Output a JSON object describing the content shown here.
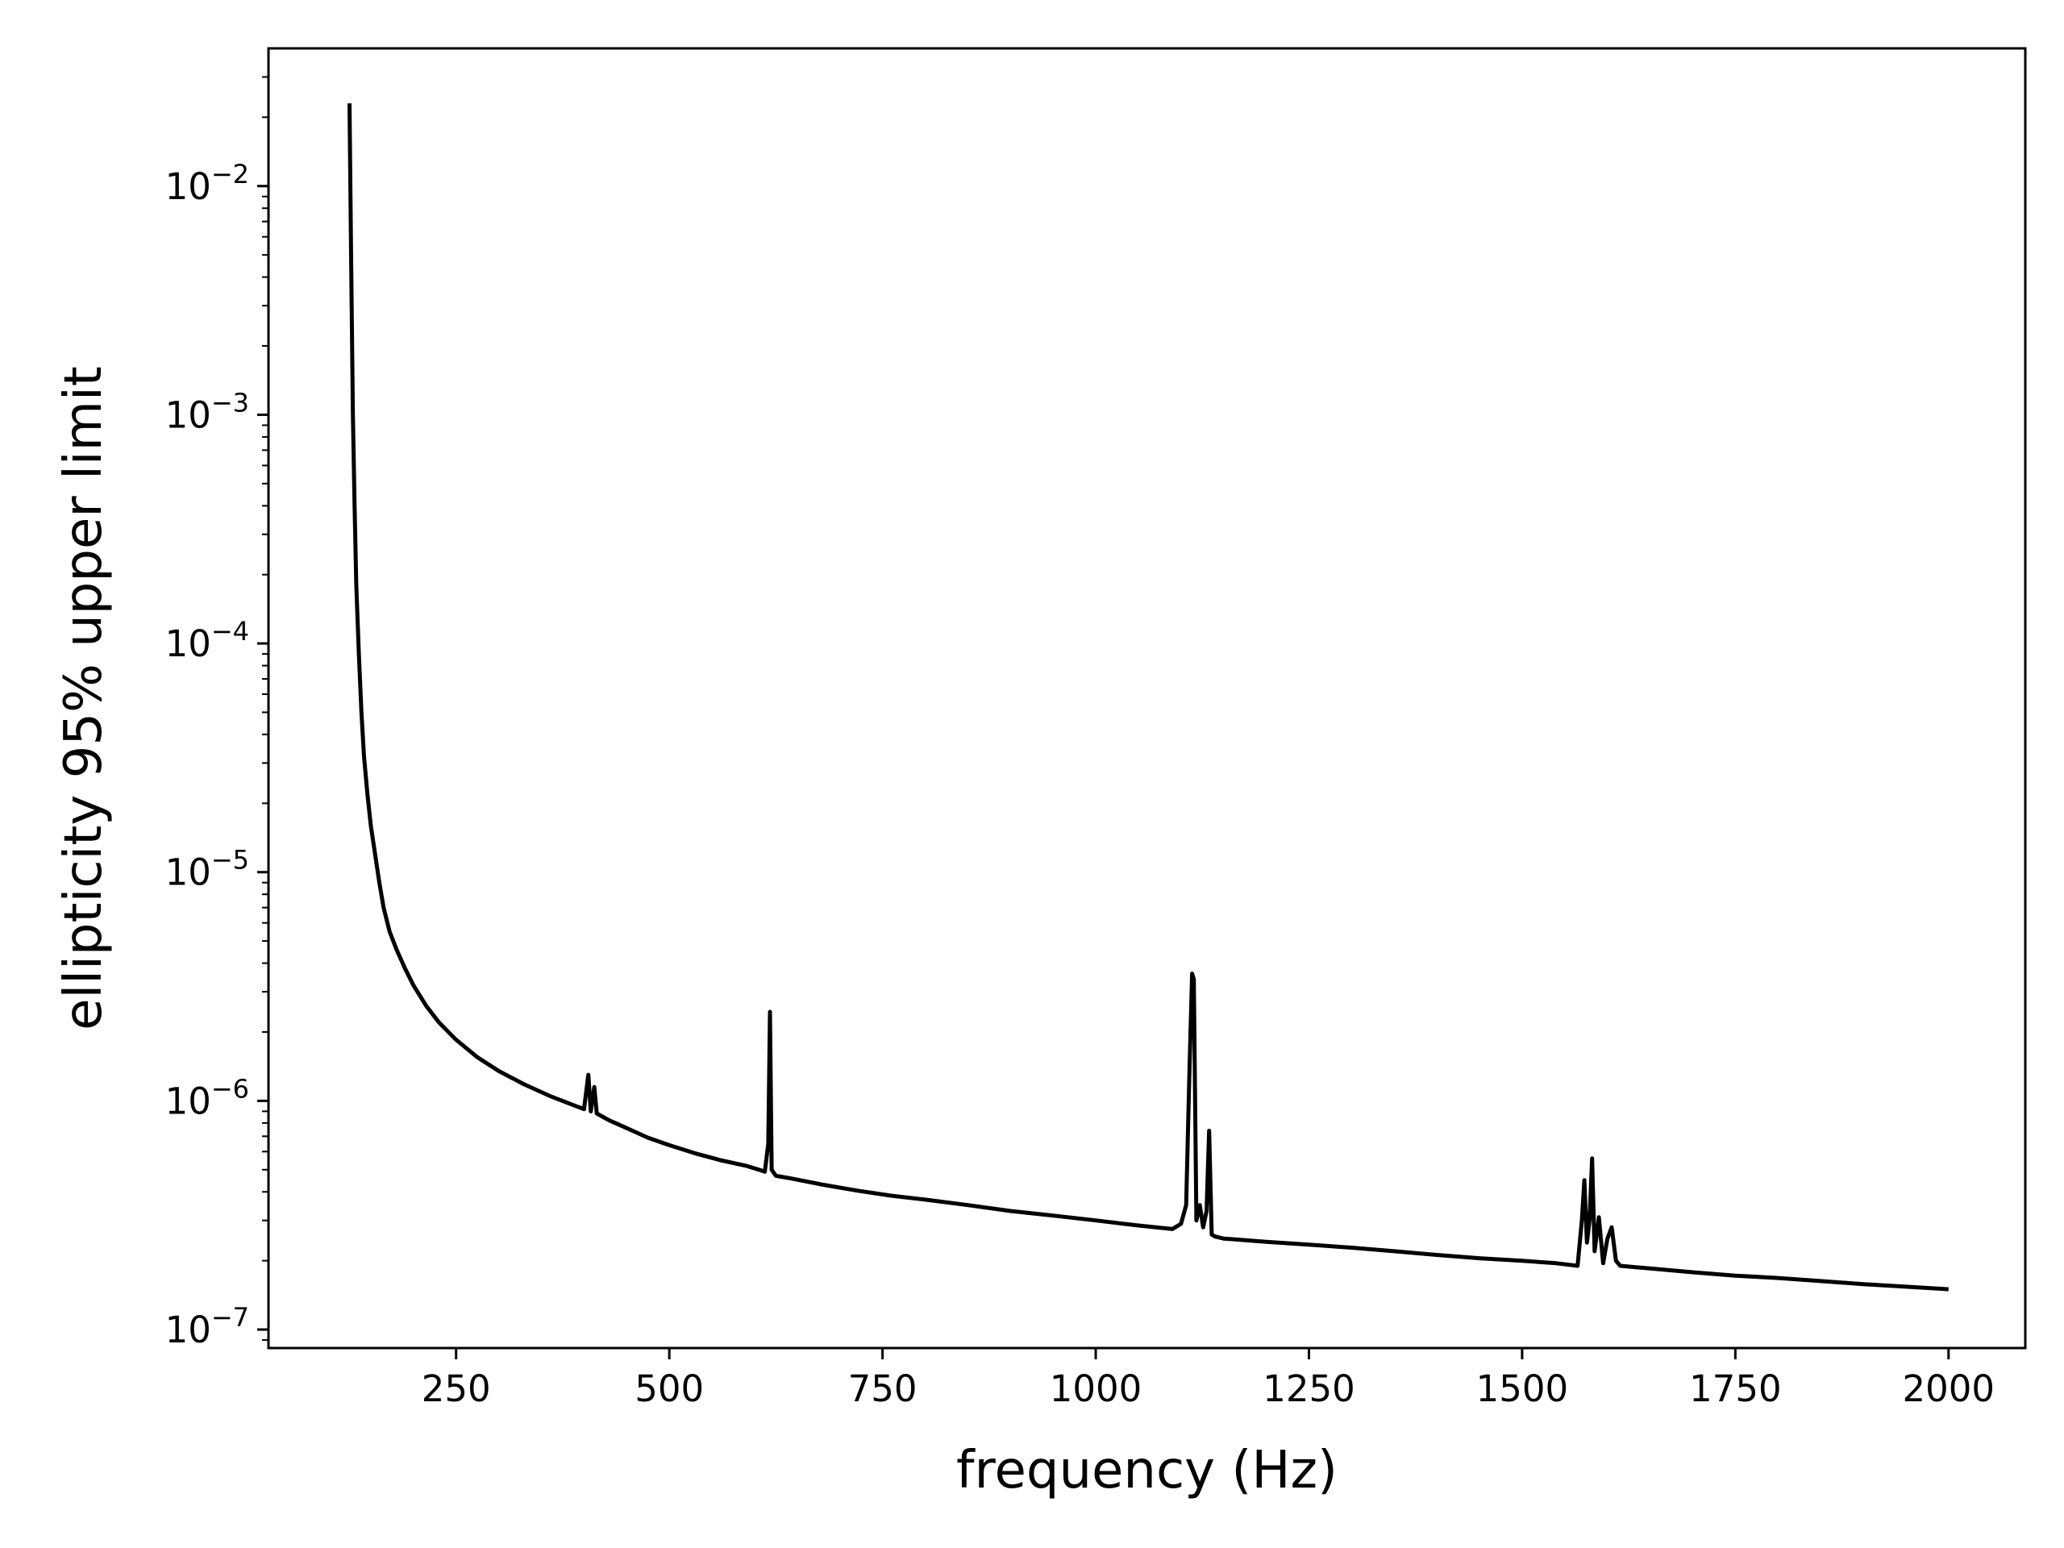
{
  "chart_data": {
    "type": "line",
    "title": "",
    "xlabel": "frequency (Hz)",
    "ylabel": "ellipticity 95% upper limit",
    "xlim": [
      30,
      2090
    ],
    "ylim": [
      8.3e-08,
      0.04
    ],
    "yscale": "log",
    "grid": false,
    "legend": "none",
    "x_ticks": [
      250,
      500,
      750,
      1000,
      1250,
      1500,
      1750,
      2000
    ],
    "x_tick_labels": [
      "250",
      "500",
      "750",
      "1000",
      "1250",
      "1500",
      "1750",
      "2000"
    ],
    "y_ticks": [
      1e-07,
      1e-06,
      1e-05,
      0.0001,
      0.001,
      0.01
    ],
    "y_tick_labels": [
      {
        "base": "10",
        "exp": "−7"
      },
      {
        "base": "10",
        "exp": "−6"
      },
      {
        "base": "10",
        "exp": "−5"
      },
      {
        "base": "10",
        "exp": "−4"
      },
      {
        "base": "10",
        "exp": "−3"
      },
      {
        "base": "10",
        "exp": "−2"
      }
    ],
    "series": [
      {
        "color": "#000000",
        "x": [
          125,
          127,
          129,
          131,
          133,
          136,
          139,
          142,
          146,
          150,
          155,
          160,
          165,
          172,
          180,
          190,
          200,
          215,
          230,
          250,
          275,
          300,
          330,
          360,
          390,
          400,
          405,
          408,
          412,
          415,
          420,
          430,
          450,
          475,
          500,
          530,
          560,
          590,
          605,
          612,
          616,
          618,
          620,
          625,
          640,
          680,
          720,
          760,
          800,
          850,
          900,
          950,
          1000,
          1050,
          1090,
          1100,
          1106,
          1110,
          1113,
          1115,
          1118,
          1122,
          1126,
          1130,
          1133,
          1136,
          1140,
          1150,
          1200,
          1250,
          1300,
          1350,
          1400,
          1450,
          1500,
          1540,
          1565,
          1570,
          1573,
          1576,
          1579,
          1582,
          1585,
          1590,
          1595,
          1600,
          1605,
          1610,
          1615,
          1650,
          1700,
          1750,
          1800,
          1850,
          1900,
          1950,
          2000
        ],
        "y": [
          0.023,
          0.0045,
          0.001,
          0.0004,
          0.00018,
          9e-05,
          5e-05,
          3.2e-05,
          2.2e-05,
          1.6e-05,
          1.2e-05,
          9e-06,
          7e-06,
          5.5e-06,
          4.6e-06,
          3.8e-06,
          3.2e-06,
          2.6e-06,
          2.2e-06,
          1.85e-06,
          1.55e-06,
          1.35e-06,
          1.18e-06,
          1.05e-06,
          9.5e-07,
          9.2e-07,
          1.3e-06,
          9e-07,
          1.15e-06,
          8.8e-07,
          8.6e-07,
          8.2e-07,
          7.6e-07,
          6.9e-07,
          6.4e-07,
          5.9e-07,
          5.5e-07,
          5.2e-07,
          5e-07,
          4.9e-07,
          6.5e-07,
          2.45e-06,
          5e-07,
          4.7e-07,
          4.6e-07,
          4.3e-07,
          4.05e-07,
          3.85e-07,
          3.7e-07,
          3.5e-07,
          3.3e-07,
          3.15e-07,
          3e-07,
          2.85e-07,
          2.75e-07,
          2.9e-07,
          3.5e-07,
          1.4e-06,
          3.6e-06,
          3.4e-06,
          3e-07,
          3.5e-07,
          2.8e-07,
          3.3e-07,
          7.4e-07,
          2.6e-07,
          2.55e-07,
          2.5e-07,
          2.42e-07,
          2.35e-07,
          2.28e-07,
          2.2e-07,
          2.12e-07,
          2.05e-07,
          2e-07,
          1.95e-07,
          1.9e-07,
          3e-07,
          4.5e-07,
          2.4e-07,
          3e-07,
          5.6e-07,
          2.2e-07,
          3.1e-07,
          1.95e-07,
          2.5e-07,
          2.8e-07,
          2e-07,
          1.9e-07,
          1.85e-07,
          1.78e-07,
          1.72e-07,
          1.68e-07,
          1.63e-07,
          1.58e-07,
          1.54e-07,
          1.5e-07
        ]
      }
    ]
  }
}
